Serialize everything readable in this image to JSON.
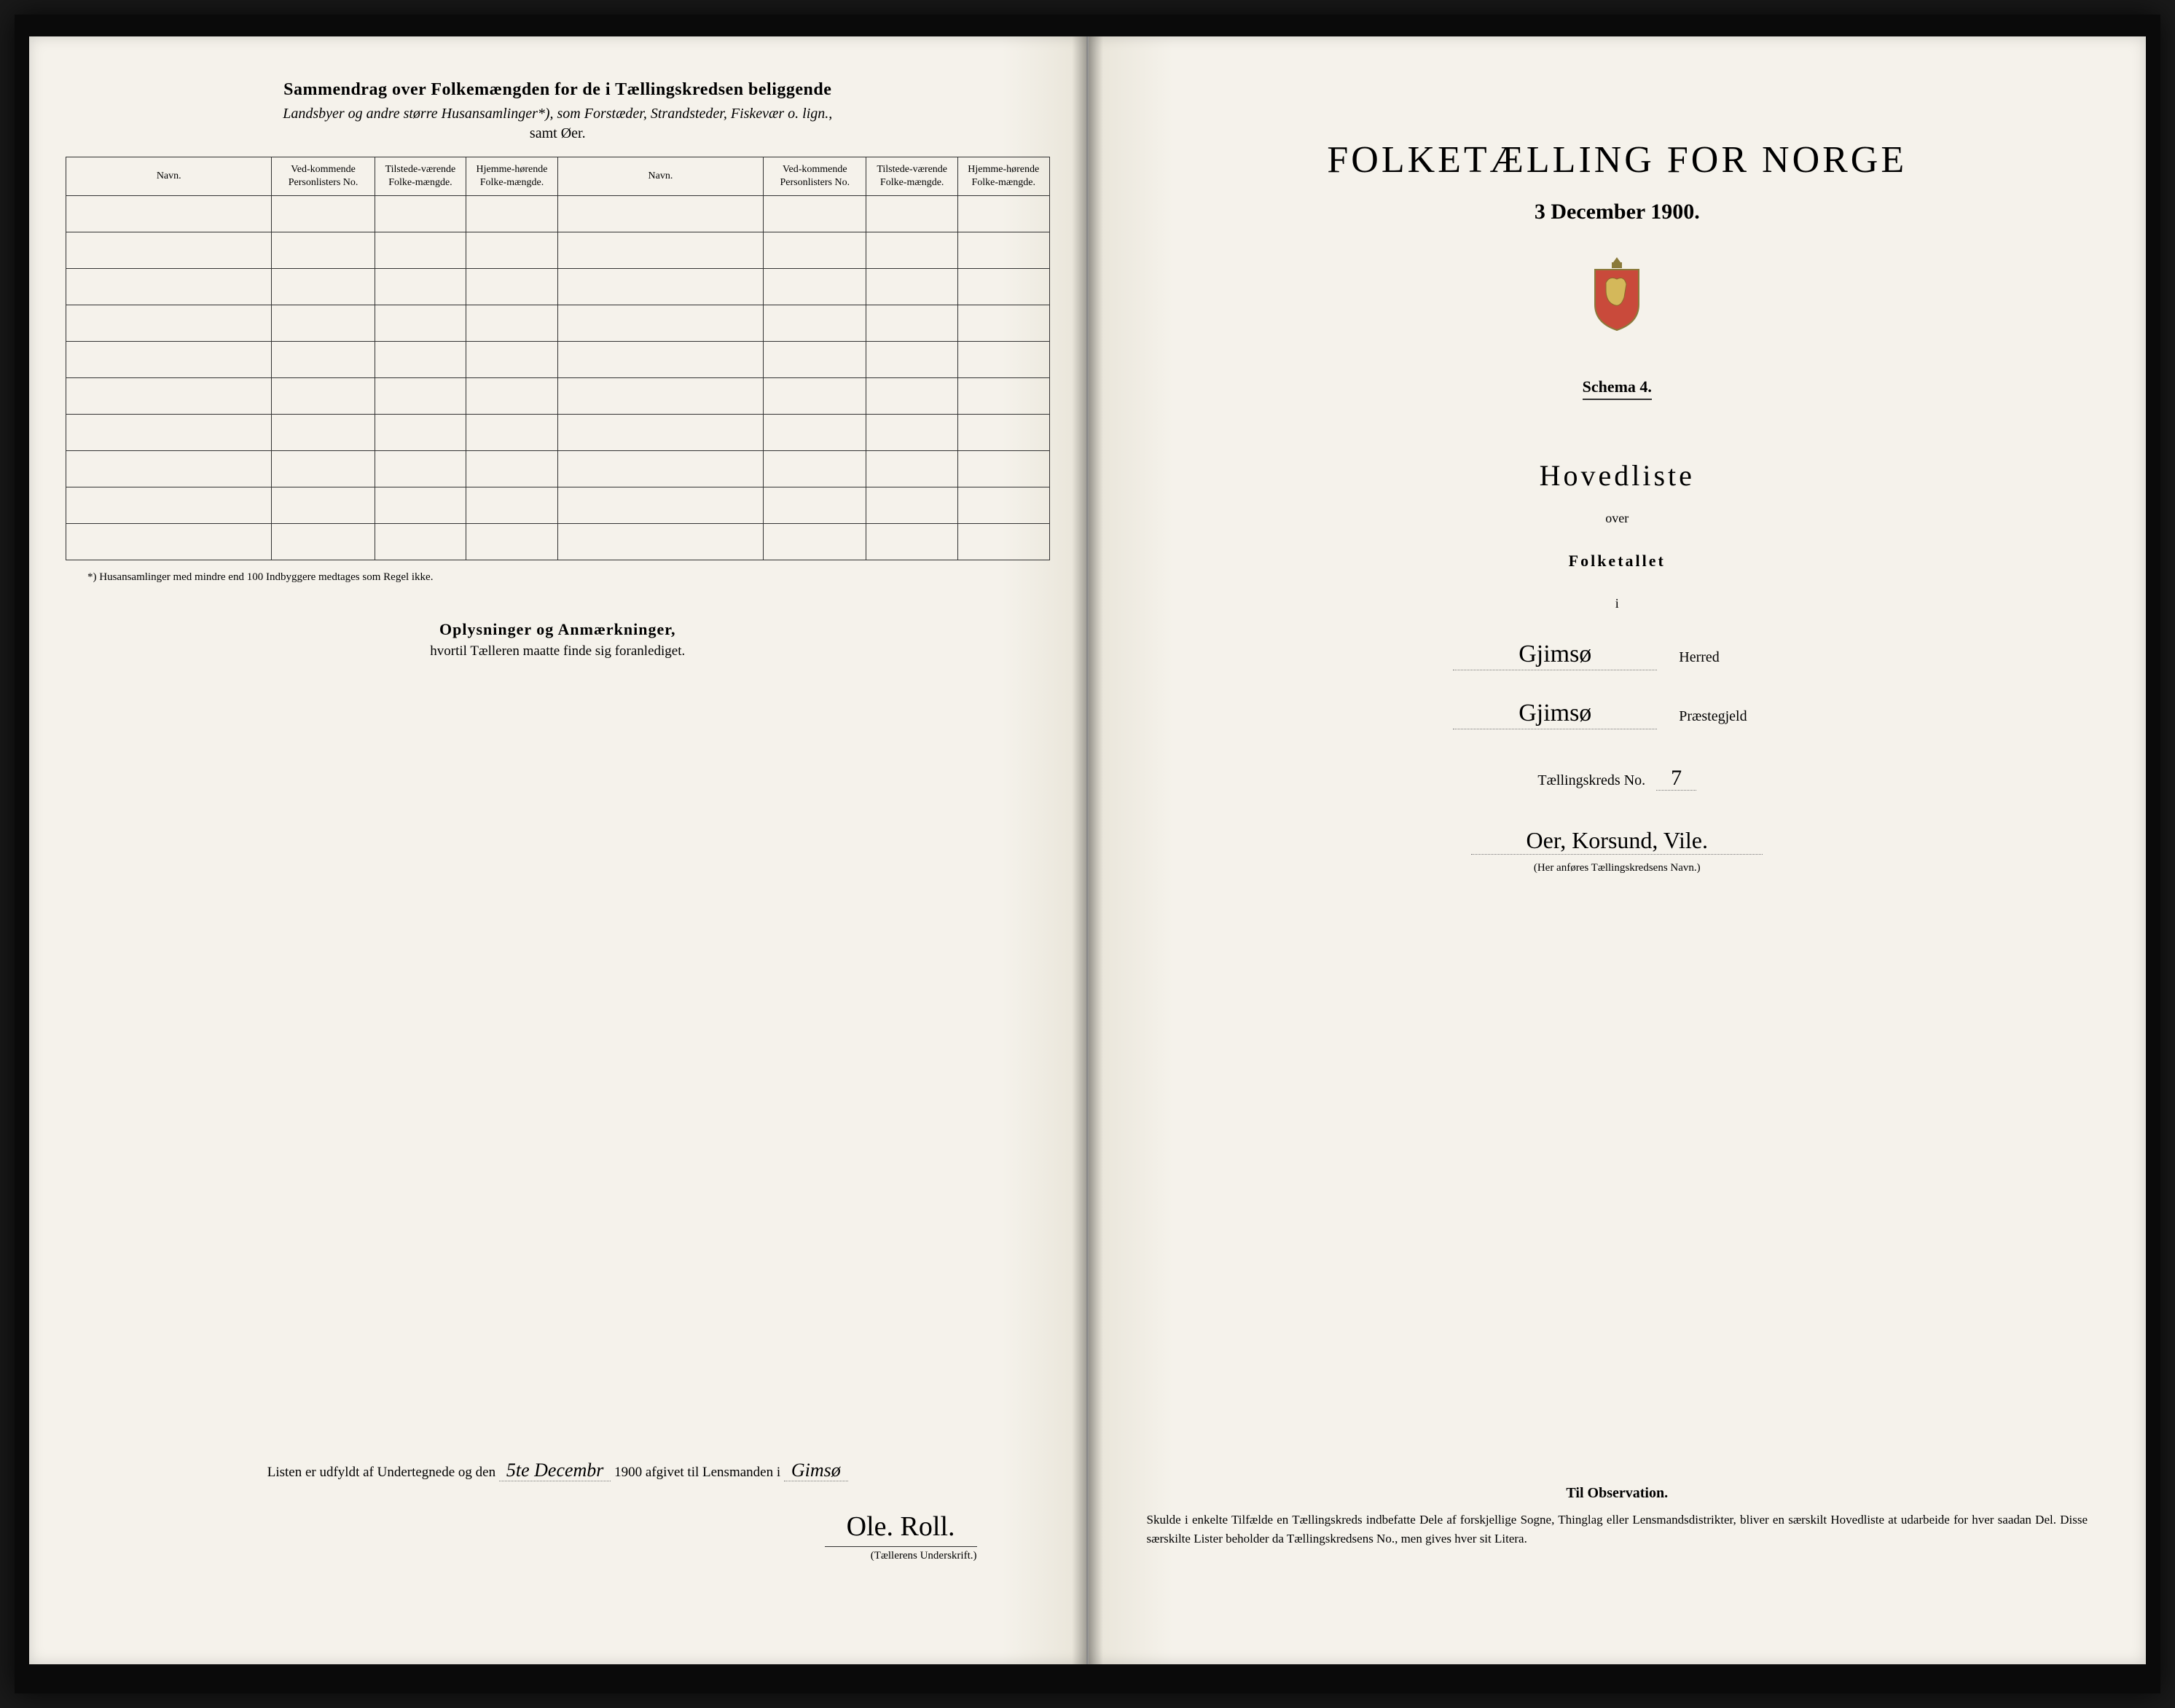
{
  "leftPage": {
    "title": "Sammendrag over Folkemængden for de i Tællingskredsen beliggende",
    "subtitle": "Landsbyer og andre større Husansamlinger*), som Forstæder, Strandsteder, Fiskevær o. lign.,",
    "subtitle2": "samt Øer.",
    "table": {
      "headers": {
        "navn": "Navn.",
        "vedkommende": "Ved-kommende Personlisters No.",
        "tilstede": "Tilstede-værende Folke-mængde.",
        "hjemme": "Hjemme-hørende Folke-mængde."
      },
      "emptyRows": 10
    },
    "footnote": "*) Husansamlinger med mindre end 100 Indbyggere medtages som Regel ikke.",
    "oplysninger": {
      "title": "Oplysninger og Anmærkninger,",
      "sub": "hvortil Tælleren maatte finde sig foranlediget."
    },
    "listen": {
      "prefix": "Listen er udfyldt af Undertegnede og den",
      "date": "5te Decembr",
      "year": "1900",
      "middle": "afgivet til Lensmanden i",
      "place": "Gimsø"
    },
    "signature": "Ole. Roll.",
    "signatureLabel": "(Tællerens Underskrift.)"
  },
  "rightPage": {
    "mainTitle": "FOLKETÆLLING FOR NORGE",
    "date": "3 December 1900.",
    "schema": "Schema 4.",
    "hovedliste": "Hovedliste",
    "over": "over",
    "folketallet": "Folketallet",
    "i": "i",
    "herred": {
      "value": "Gjimsø",
      "label": "Herred"
    },
    "praestegjeld": {
      "value": "Gjimsø",
      "label": "Præstegjeld"
    },
    "kredsLabel": "Tællingskreds No.",
    "kredsNo": "7",
    "kredsName": "Oer, Korsund, Vile.",
    "kredsHint": "(Her anføres Tællingskredsens Navn.)",
    "observation": {
      "title": "Til Observation.",
      "text": "Skulde i enkelte Tilfælde en Tællingskreds indbefatte Dele af forskjellige Sogne, Thinglag eller Lensmandsdistrikter, bliver en særskilt Hovedliste at udarbeide for hver saadan Del. Disse særskilte Lister beholder da Tællingskredsens No., men gives hver sit Litera."
    }
  },
  "colors": {
    "paper": "#f5f2eb",
    "ink": "#1a1a1a",
    "border": "#333333"
  }
}
